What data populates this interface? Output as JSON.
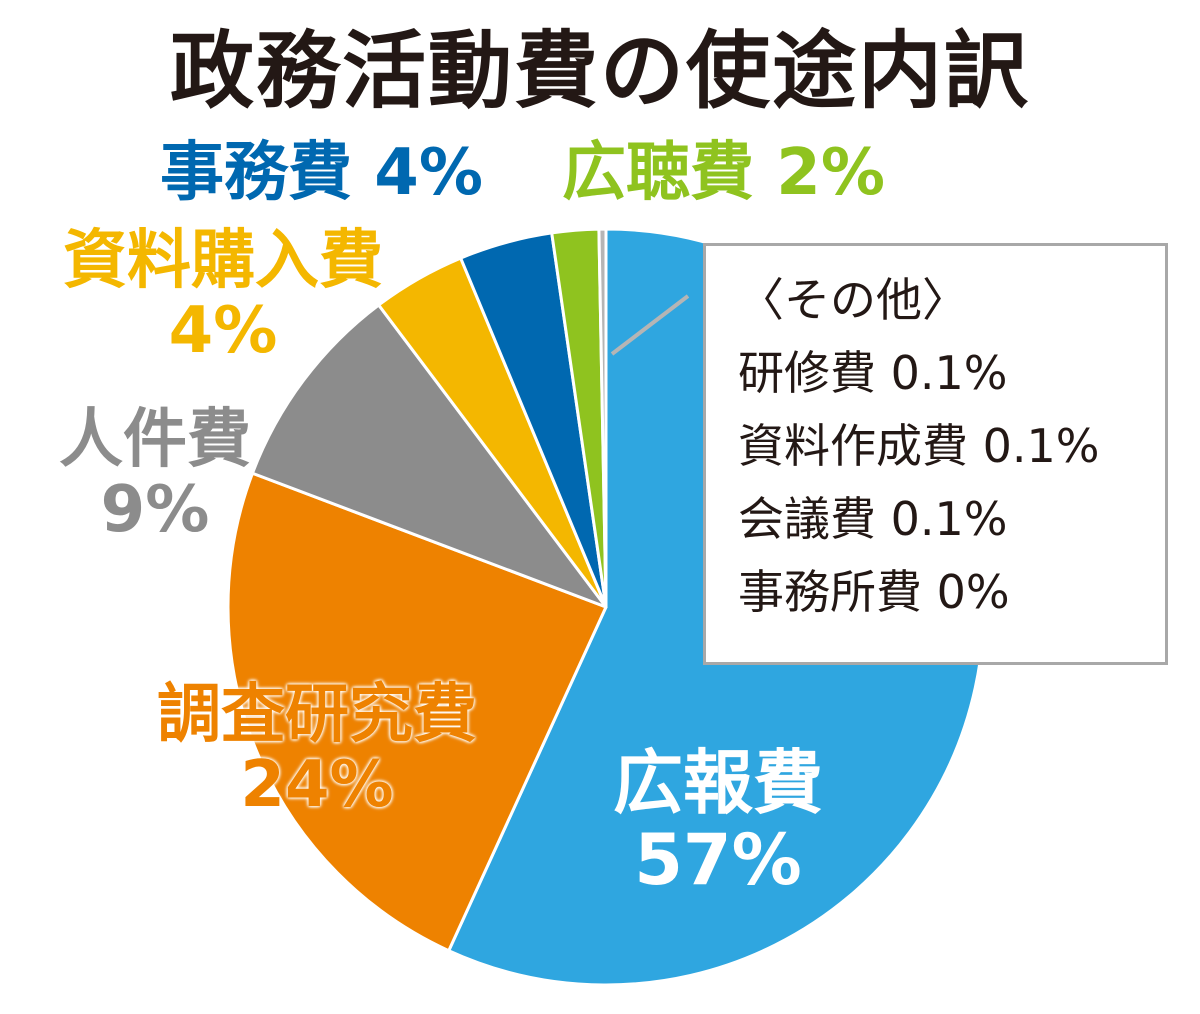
{
  "title": "政務活動費の使途内訳",
  "chart_data": {
    "type": "pie",
    "title": "政務活動費の使途内訳",
    "slices": [
      {
        "label": "広報費",
        "value": 57,
        "display": "57%",
        "color": "#2fa6e0"
      },
      {
        "label": "調査研究費",
        "value": 24,
        "display": "24%",
        "color": "#ee8200"
      },
      {
        "label": "人件費",
        "value": 9,
        "display": "9%",
        "color": "#8c8c8c"
      },
      {
        "label": "資料購入費",
        "value": 4,
        "display": "4%",
        "color": "#f4b700"
      },
      {
        "label": "事務費",
        "value": 4,
        "display": "4%",
        "color": "#0068b0"
      },
      {
        "label": "広聴費",
        "value": 2,
        "display": "2%",
        "color": "#8fc31f"
      },
      {
        "label": "その他",
        "value": 0.3,
        "display": "",
        "color": "#b5b5b5"
      }
    ],
    "other_box": {
      "heading": "〈その他〉",
      "items": [
        {
          "label": "研修費",
          "value": "0.1%"
        },
        {
          "label": "資料作成費",
          "value": "0.1%"
        },
        {
          "label": "会議費",
          "value": "0.1%"
        },
        {
          "label": "事務所費",
          "value": "0%"
        }
      ]
    }
  }
}
